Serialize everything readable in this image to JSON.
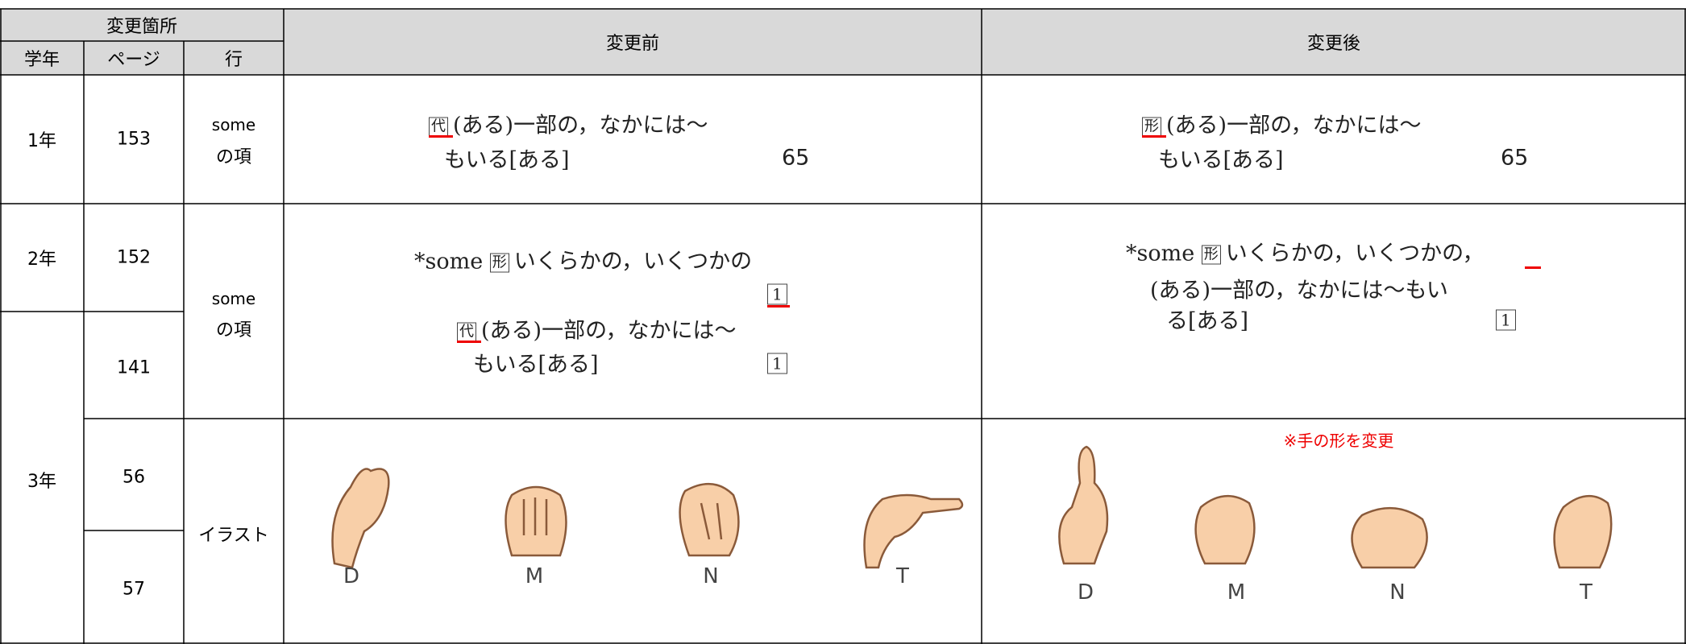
{
  "header": {
    "group": "変更箇所",
    "grade": "学年",
    "page": "ページ",
    "line": "行",
    "before": "変更前",
    "after": "変更後"
  },
  "grades": [
    "1年",
    "2年",
    "3年"
  ],
  "pages": [
    "153",
    "152",
    "141",
    "56",
    "57"
  ],
  "lines": [
    [
      "some",
      "の項"
    ],
    [
      "some",
      "の項"
    ],
    [
      "イラスト"
    ]
  ],
  "entries": [
    {
      "before": {
        "tag": "代",
        "text": [
          "(ある)一部の，なかには～",
          "もいる[ある]"
        ],
        "number": "65"
      },
      "after": {
        "tag": "形",
        "text": [
          "(ある)一部の，なかには～",
          "もいる[ある]"
        ],
        "number": "65"
      }
    },
    {
      "before": {
        "head": "*some",
        "tag": "形",
        "text": [
          "いくらかの，いくつかの"
        ],
        "number": "1",
        "tag2": "代",
        "text2": [
          "(ある)一部の，なかには～",
          "もいる[ある]"
        ],
        "number2": "1"
      },
      "after": {
        "head": "*some",
        "tag": "形",
        "text": [
          "いくらかの，いくつかの，",
          "(ある)一部の，なかには～もい",
          "る[ある]"
        ],
        "number": "1"
      }
    },
    {
      "before": {
        "letters": [
          "D",
          "M",
          "N",
          "T"
        ]
      },
      "after": {
        "note": "※手の形を変更",
        "letters": [
          "D",
          "M",
          "N",
          "T"
        ]
      }
    }
  ]
}
